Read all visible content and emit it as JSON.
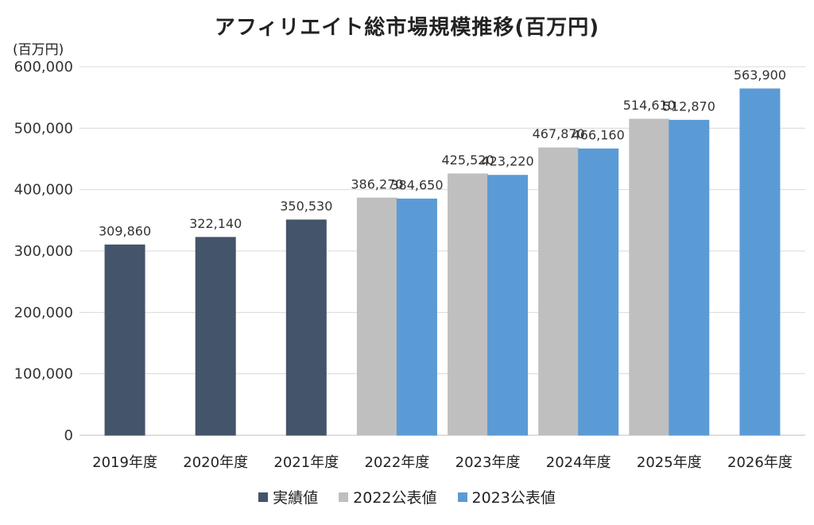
{
  "chart_data": {
    "type": "bar",
    "title": "アフィリエイト総市場規模推移(百万円)",
    "unit_label": "(百万円)",
    "categories": [
      "2019年度",
      "2020年度",
      "2021年度",
      "2022年度",
      "2023年度",
      "2024年度",
      "2025年度",
      "2026年度"
    ],
    "ylim": [
      0,
      600000
    ],
    "yticks": [
      0,
      100000,
      200000,
      300000,
      400000,
      500000,
      600000
    ],
    "ytick_labels": [
      "0",
      "100,000",
      "200,000",
      "300,000",
      "400,000",
      "500,000",
      "600,000"
    ],
    "grid": true,
    "legend_position": "bottom",
    "series": [
      {
        "name": "実績値",
        "color": "#44546a",
        "values": [
          309860,
          322140,
          350530,
          null,
          null,
          null,
          null,
          null
        ],
        "labels": [
          "309,860",
          "322,140",
          "350,530",
          null,
          null,
          null,
          null,
          null
        ]
      },
      {
        "name": "2022公表値",
        "color": "#bfbfbf",
        "values": [
          null,
          null,
          null,
          386270,
          425520,
          467870,
          514610,
          null
        ],
        "labels": [
          null,
          null,
          null,
          "386,270",
          "425,520",
          "467,870",
          "514,610",
          null
        ]
      },
      {
        "name": "2023公表値",
        "color": "#5b9bd5",
        "values": [
          null,
          null,
          null,
          384650,
          423220,
          466160,
          512870,
          563900
        ],
        "labels": [
          null,
          null,
          null,
          "384,650",
          "423,220",
          "466,160",
          "512,870",
          "563,900"
        ]
      }
    ]
  }
}
